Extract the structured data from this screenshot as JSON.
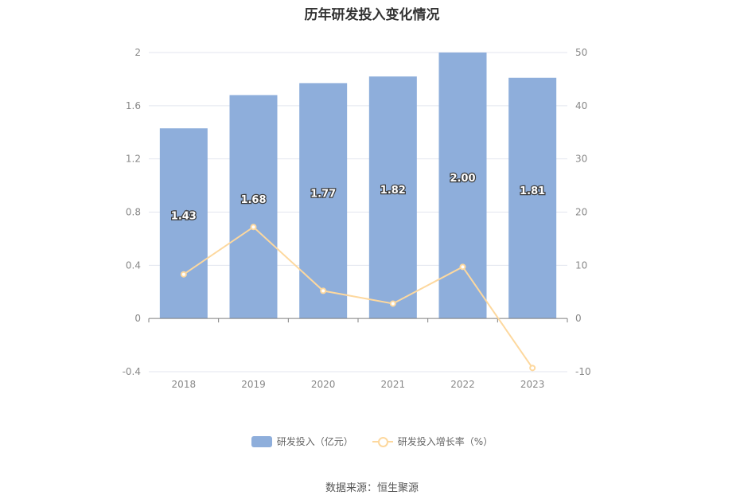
{
  "chart_data": {
    "type": "bar",
    "title": "历年研发投入变化情况",
    "categories": [
      "2018",
      "2019",
      "2020",
      "2021",
      "2022",
      "2023"
    ],
    "series": [
      {
        "name": "研发投入（亿元）",
        "type": "bar",
        "axis": "left",
        "values": [
          1.43,
          1.68,
          1.77,
          1.82,
          2.0,
          1.81
        ],
        "data_labels": [
          "1.43",
          "1.68",
          "1.77",
          "1.82",
          "2.00",
          "1.81"
        ],
        "color": "#8eaedb"
      },
      {
        "name": "研发投入增长率（%）",
        "type": "line",
        "axis": "right",
        "values": [
          8.3,
          17.2,
          5.2,
          2.8,
          9.7,
          -9.3
        ],
        "color": "#fdd89e"
      }
    ],
    "y_left": {
      "ylim": [
        -0.4,
        2
      ],
      "ticks": [
        "-0.4",
        "0",
        "0.4",
        "0.8",
        "1.2",
        "1.6",
        "2"
      ]
    },
    "y_right": {
      "ylim": [
        -10,
        50
      ],
      "ticks": [
        "-10",
        "0",
        "10",
        "20",
        "30",
        "40",
        "50"
      ]
    },
    "grid": true,
    "legend": "bottom"
  },
  "footer": {
    "source": "数据来源：恒生聚源"
  }
}
